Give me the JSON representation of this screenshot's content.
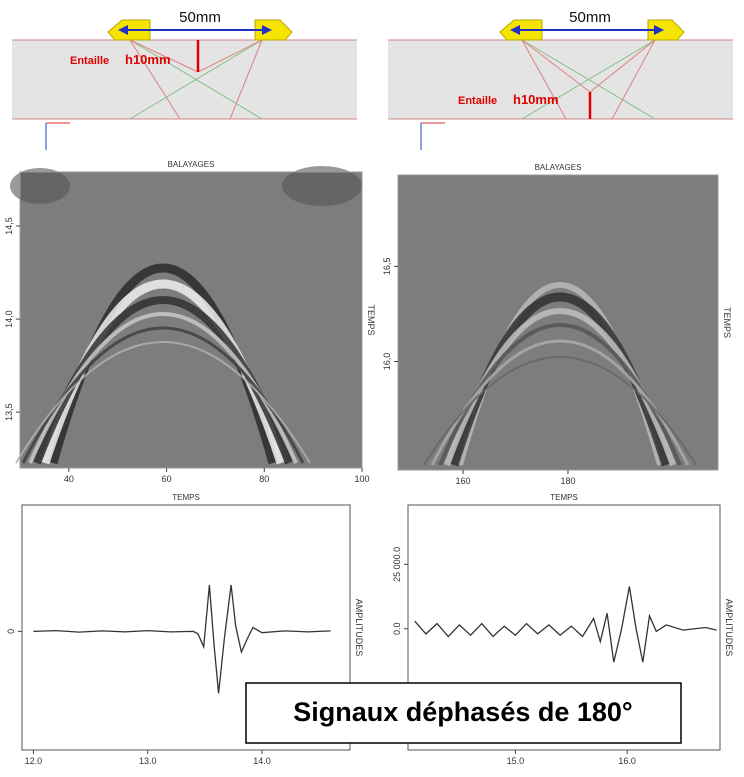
{
  "diagrams": [
    {
      "distance": "50mm",
      "notch_label": "Entaille",
      "notch_size": "h10mm"
    },
    {
      "distance": "50mm",
      "notch_label": "Entaille",
      "notch_size": "h10mm"
    }
  ],
  "banner": "Signaux déphasés de 180°",
  "chart_data": [
    {
      "type": "image",
      "title": "BALAYAGES",
      "y_label": "TEMPS",
      "xlim": [
        30,
        100
      ],
      "xticks": [
        40,
        60,
        80,
        100
      ],
      "ylim": [
        13.2,
        14.79
      ],
      "yticks": [
        {
          "value": 13.5,
          "label": "13,5"
        },
        {
          "value": 14.0,
          "label": "14,0"
        },
        {
          "value": 14.5,
          "label": "14,5"
        }
      ]
    },
    {
      "type": "image",
      "title": "BALAYAGES",
      "y_label": "TEMPS",
      "xlim": [
        147.6,
        208.6
      ],
      "xticks": [
        160,
        180
      ],
      "ylim": [
        15.43,
        16.98
      ],
      "yticks": [
        {
          "value": 16.0,
          "label": "16,0"
        },
        {
          "value": 16.5,
          "label": "16,5"
        }
      ]
    },
    {
      "type": "line",
      "title": "TEMPS",
      "y_label": "AMPLITUDES",
      "color": "#333333",
      "xlim": [
        11.9,
        14.77
      ],
      "xticks": [
        {
          "value": 12,
          "label": "12.0"
        },
        {
          "value": 13,
          "label": "13.0"
        },
        {
          "value": 14,
          "label": "14.0"
        }
      ],
      "ylim": [
        -46000,
        49000
      ],
      "yticks": [
        0
      ],
      "x": [
        12.0,
        12.2,
        12.4,
        12.6,
        12.8,
        13.0,
        13.2,
        13.4,
        13.44,
        13.49,
        13.54,
        13.58,
        13.62,
        13.67,
        13.73,
        13.77,
        13.82,
        13.87,
        13.92,
        14.0,
        14.2,
        14.4,
        14.6
      ],
      "values": [
        0,
        300,
        -300,
        200,
        -200,
        300,
        -200,
        0,
        -1000,
        -6000,
        18000,
        -5000,
        -24000,
        -3000,
        18000,
        2000,
        -8000,
        -3000,
        1500,
        -500,
        200,
        -200,
        200
      ]
    },
    {
      "type": "line",
      "title": "TEMPS",
      "y_label": "AMPLITUDES",
      "color": "#333333",
      "xlim": [
        14.04,
        16.83
      ],
      "xticks": [
        {
          "value": 15,
          "label": "15.0"
        },
        {
          "value": 16,
          "label": "16.0"
        }
      ],
      "ylim": [
        -47000,
        48000
      ],
      "yticks": [
        {
          "value": 0,
          "label": "0.0"
        },
        {
          "value": 25000,
          "label": "25 000.0"
        }
      ],
      "x": [
        14.1,
        14.2,
        14.3,
        14.4,
        14.5,
        14.6,
        14.7,
        14.8,
        14.9,
        15.0,
        15.1,
        15.2,
        15.3,
        15.4,
        15.5,
        15.6,
        15.7,
        15.76,
        15.82,
        15.88,
        15.95,
        16.02,
        16.08,
        16.14,
        16.2,
        16.26,
        16.35,
        16.5,
        16.7,
        16.8
      ],
      "values": [
        3000,
        -2000,
        2000,
        -3000,
        1500,
        -2500,
        2000,
        -3000,
        1000,
        -2500,
        2000,
        -2000,
        1500,
        -2500,
        1000,
        -3000,
        4000,
        -5000,
        6000,
        -12900,
        0,
        16400,
        0,
        -12900,
        5000,
        -1000,
        1500,
        -500,
        500,
        -500
      ]
    }
  ]
}
